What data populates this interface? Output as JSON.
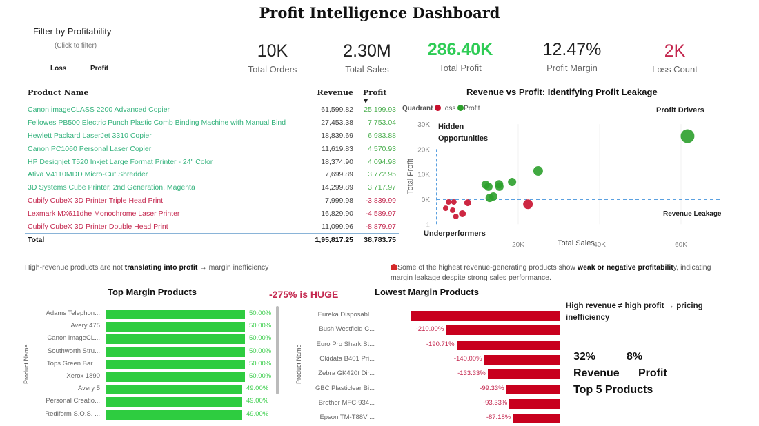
{
  "title": "Profit Intelligence Dashboard",
  "filter": {
    "title": "Filter by Profitability",
    "subtitle": "(Click to filter)",
    "options": [
      "Loss",
      "Profit"
    ]
  },
  "kpis": [
    {
      "value": "10K",
      "label": "Total Orders",
      "color": "#222222"
    },
    {
      "value": "2.30M",
      "label": "Total Sales",
      "color": "#222222"
    },
    {
      "value": "286.40K",
      "label": "Total Profit",
      "color": "#2ecc55"
    },
    {
      "value": "12.47%",
      "label": "Profit Margin",
      "color": "#222222"
    },
    {
      "value": "2K",
      "label": "Loss Count",
      "color": "#c4284f"
    }
  ],
  "table": {
    "headers": [
      "Product Name",
      "Revenue",
      "Profit"
    ],
    "sort_indicator": "▼",
    "rows": [
      {
        "name": "Canon imageCLASS 2200 Advanced Copier",
        "revenue": "61,599.82",
        "profit": "25,199.93",
        "status": "profit"
      },
      {
        "name": "Fellowes PB500 Electric Punch Plastic Comb Binding Machine with Manual Bind",
        "revenue": "27,453.38",
        "profit": "7,753.04",
        "status": "profit"
      },
      {
        "name": "Hewlett Packard LaserJet 3310 Copier",
        "revenue": "18,839.69",
        "profit": "6,983.88",
        "status": "profit"
      },
      {
        "name": "Canon PC1060 Personal Laser Copier",
        "revenue": "11,619.83",
        "profit": "4,570.93",
        "status": "profit"
      },
      {
        "name": "HP Designjet T520 Inkjet Large Format Printer - 24\" Color",
        "revenue": "18,374.90",
        "profit": "4,094.98",
        "status": "profit"
      },
      {
        "name": "Ativa V4110MDD Micro-Cut Shredder",
        "revenue": "7,699.89",
        "profit": "3,772.95",
        "status": "profit"
      },
      {
        "name": "3D Systems Cube Printer, 2nd Generation, Magenta",
        "revenue": "14,299.89",
        "profit": "3,717.97",
        "status": "profit"
      },
      {
        "name": "Cubify CubeX 3D Printer Triple Head Print",
        "revenue": "7,999.98",
        "profit": "-3,839.99",
        "status": "loss"
      },
      {
        "name": "Lexmark MX611dhe Monochrome Laser Printer",
        "revenue": "16,829.90",
        "profit": "-4,589.97",
        "status": "loss"
      },
      {
        "name": "Cubify CubeX 3D Printer Double Head Print",
        "revenue": "11,099.96",
        "profit": "-8,879.97",
        "status": "loss"
      }
    ],
    "total": {
      "label": "Total",
      "revenue": "1,95,817.25",
      "profit": "38,783.75"
    }
  },
  "note_left": {
    "pre": "High-revenue products are not ",
    "bold": "translating into profit",
    "post": " → margin inefficiency"
  },
  "note_right": {
    "icon": "alarm-icon",
    "pre": "Some of the highest revenue-generating products show ",
    "bold": "weak or negative profitabilit",
    "post": "y, indicating margin leakage despite strong sales performance."
  },
  "chart_data": [
    {
      "type": "scatter",
      "title": "Revenue vs Profit: Identifying Profit Leakage",
      "xlabel": "Total Sales",
      "ylabel": "Total Profit",
      "xlim": [
        0,
        70000
      ],
      "ylim": [
        -10000,
        30000
      ],
      "x_ticks": [
        "20K",
        "40K",
        "60K"
      ],
      "x_tick_values": [
        20000,
        40000,
        60000
      ],
      "y_ticks": [
        "30K",
        "20K",
        "10K",
        "0K",
        "-1"
      ],
      "y_tick_values": [
        30000,
        20000,
        10000,
        0,
        -10000
      ],
      "legend": {
        "title": "Quadrant",
        "placement": "top-left",
        "entries": [
          {
            "name": "Loss",
            "color": "#c8102e"
          },
          {
            "name": "Profit",
            "color": "#2ca02c"
          }
        ]
      },
      "reference_lines": {
        "x": 0,
        "y": 0,
        "color": "#5aa0e0"
      },
      "annotations": [
        "Profit Drivers",
        "Hidden Opportunities",
        "Underperformers",
        "Revenue Leakage"
      ],
      "points": [
        {
          "x": 61600,
          "y": 25200,
          "q": "Profit"
        },
        {
          "x": 24900,
          "y": 11300,
          "q": "Profit"
        },
        {
          "x": 18500,
          "y": 6900,
          "q": "Profit"
        },
        {
          "x": 15300,
          "y": 6000,
          "q": "Profit"
        },
        {
          "x": 15400,
          "y": 5000,
          "q": "Profit"
        },
        {
          "x": 12000,
          "y": 5800,
          "q": "Profit"
        },
        {
          "x": 12700,
          "y": 5000,
          "q": "Profit"
        },
        {
          "x": 13000,
          "y": 500,
          "q": "Profit"
        },
        {
          "x": 13900,
          "y": 1100,
          "q": "Profit"
        },
        {
          "x": 22400,
          "y": -2000,
          "q": "Loss"
        },
        {
          "x": 7600,
          "y": -1400,
          "q": "Loss"
        },
        {
          "x": 2900,
          "y": -1100,
          "q": "Loss"
        },
        {
          "x": 4200,
          "y": -1100,
          "q": "Loss"
        },
        {
          "x": 2200,
          "y": -3600,
          "q": "Loss"
        },
        {
          "x": 3900,
          "y": -4400,
          "q": "Loss"
        },
        {
          "x": 4700,
          "y": -6900,
          "q": "Loss"
        },
        {
          "x": 6300,
          "y": -5800,
          "q": "Loss"
        }
      ]
    },
    {
      "type": "bar",
      "orientation": "horizontal",
      "title": "Top Margin Products",
      "ylabel": "Product Name",
      "color": "#2ecc40",
      "categories": [
        "Adams Telephon...",
        "Avery 475",
        "Canon imageCL...",
        "Southworth Stru...",
        "Tops Green Bar ...",
        "Xerox 1890",
        "Avery 5",
        "Personal Creatio...",
        "Rediform S.O.S. ..."
      ],
      "values": [
        50,
        50,
        50,
        50,
        50,
        50,
        49,
        49,
        49
      ],
      "labels": [
        "50.00%",
        "50.00%",
        "50.00%",
        "50.00%",
        "50.00%",
        "50.00%",
        "49.00%",
        "49.00%",
        "49.00%"
      ]
    },
    {
      "type": "bar",
      "orientation": "horizontal",
      "title": "Lowest Margin Products",
      "ylabel": "Product Name",
      "color": "#c8001e",
      "categories": [
        "Eureka Disposabl...",
        "Bush Westfield C...",
        "Euro Pro Shark St...",
        "Okidata B401 Pri...",
        "Zebra GK420t Dir...",
        "GBC Plasticlear Bi...",
        "Brother MFC-934...",
        "Epson TM-T88V ..."
      ],
      "values": [
        -275,
        -210,
        -190.71,
        -140,
        -133.33,
        -99.33,
        -93.33,
        -87.18
      ],
      "labels": [
        "",
        "-210.00%",
        "-190.71%",
        "-140.00%",
        "-133.33%",
        "-99.33%",
        "-93.33%",
        "-87.18%"
      ]
    }
  ],
  "callouts": {
    "huge": "-275% is HUGE",
    "insight": "High revenue ≠ high profit → pricing inefficiency",
    "pct1": "32%",
    "pct2": "8%",
    "lbl1": "Revenue",
    "lbl2": "Profit",
    "top5": "Top 5 Products"
  }
}
